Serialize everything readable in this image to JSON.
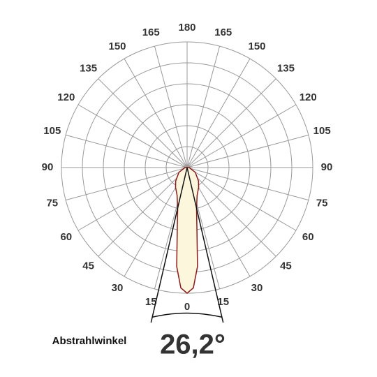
{
  "chart_data": {
    "type": "polar",
    "x": [
      -90,
      -60,
      -40,
      -30,
      -20,
      -13,
      -9,
      -6,
      -3,
      0,
      3,
      6,
      9,
      13,
      20,
      30,
      40,
      60,
      90
    ],
    "values": [
      0.1,
      0.45,
      0.85,
      1.1,
      1.4,
      2.0,
      3.0,
      4.75,
      5.75,
      6.0,
      5.75,
      4.75,
      3.0,
      2.0,
      1.4,
      1.1,
      0.85,
      0.45,
      0.1
    ],
    "color": "#8b1a1a",
    "fill": "#fbf6dc",
    "ylim": [
      0,
      6
    ],
    "yticks": [
      1,
      2,
      3,
      4,
      5,
      6
    ],
    "grid": true,
    "xticks": [
      0,
      15,
      30,
      45,
      60,
      75,
      90,
      105,
      120,
      135,
      150,
      165,
      180
    ],
    "beam_label": "Abstrahlwinkel",
    "beam_angle": {
      "value": 26.2,
      "label": "26,2°"
    }
  }
}
